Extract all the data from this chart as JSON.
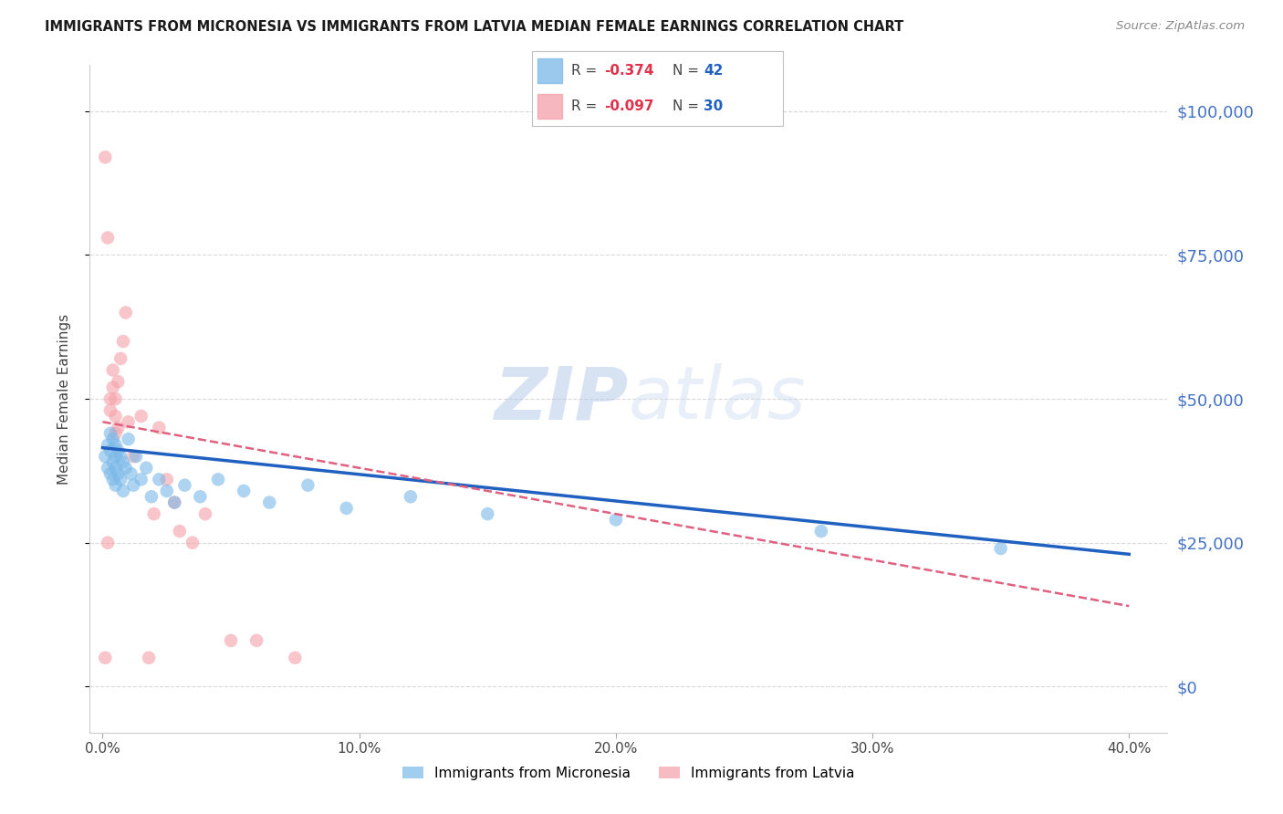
{
  "title": "IMMIGRANTS FROM MICRONESIA VS IMMIGRANTS FROM LATVIA MEDIAN FEMALE EARNINGS CORRELATION CHART",
  "source": "Source: ZipAtlas.com",
  "ylabel": "Median Female Earnings",
  "y_tick_labels": [
    "$0",
    "$25,000",
    "$50,000",
    "$75,000",
    "$100,000"
  ],
  "y_tick_values": [
    0,
    25000,
    50000,
    75000,
    100000
  ],
  "x_tick_labels": [
    "0.0%",
    "10.0%",
    "20.0%",
    "30.0%",
    "40.0%"
  ],
  "x_tick_values": [
    0.0,
    0.1,
    0.2,
    0.3,
    0.4
  ],
  "xlim": [
    -0.005,
    0.415
  ],
  "ylim": [
    -8000,
    108000
  ],
  "micronesia_color": "#7ab8e8",
  "latvia_color": "#f4a0a8",
  "micronesia_label": "Immigrants from Micronesia",
  "latvia_label": "Immigrants from Latvia",
  "watermark_zip": "ZIP",
  "watermark_atlas": "atlas",
  "background_color": "#ffffff",
  "grid_color": "#d0d0d0",
  "micronesia_x": [
    0.001,
    0.002,
    0.002,
    0.003,
    0.003,
    0.003,
    0.004,
    0.004,
    0.004,
    0.005,
    0.005,
    0.005,
    0.005,
    0.006,
    0.006,
    0.007,
    0.007,
    0.008,
    0.008,
    0.009,
    0.01,
    0.011,
    0.012,
    0.013,
    0.015,
    0.017,
    0.019,
    0.022,
    0.025,
    0.028,
    0.032,
    0.038,
    0.045,
    0.055,
    0.065,
    0.08,
    0.095,
    0.12,
    0.15,
    0.2,
    0.28,
    0.35
  ],
  "micronesia_y": [
    40000,
    42000,
    38000,
    44000,
    41000,
    37000,
    43000,
    39000,
    36000,
    42000,
    40000,
    38000,
    35000,
    41000,
    37000,
    40000,
    36000,
    39000,
    34000,
    38000,
    43000,
    37000,
    35000,
    40000,
    36000,
    38000,
    33000,
    36000,
    34000,
    32000,
    35000,
    33000,
    36000,
    34000,
    32000,
    35000,
    31000,
    33000,
    30000,
    29000,
    27000,
    24000
  ],
  "latvia_x": [
    0.001,
    0.001,
    0.002,
    0.002,
    0.003,
    0.003,
    0.004,
    0.004,
    0.005,
    0.005,
    0.005,
    0.006,
    0.006,
    0.007,
    0.008,
    0.009,
    0.01,
    0.012,
    0.015,
    0.018,
    0.02,
    0.022,
    0.025,
    0.028,
    0.03,
    0.035,
    0.04,
    0.05,
    0.06,
    0.075
  ],
  "latvia_y": [
    92000,
    5000,
    25000,
    78000,
    50000,
    48000,
    55000,
    52000,
    50000,
    47000,
    44000,
    53000,
    45000,
    57000,
    60000,
    65000,
    46000,
    40000,
    47000,
    5000,
    30000,
    45000,
    36000,
    32000,
    27000,
    25000,
    30000,
    8000,
    8000,
    5000
  ],
  "mic_trend_x0": 0.0,
  "mic_trend_y0": 41500,
  "mic_trend_x1": 0.4,
  "mic_trend_y1": 23000,
  "lat_trend_x0": 0.0,
  "lat_trend_y0": 46000,
  "lat_trend_x1": 0.4,
  "lat_trend_y1": 14000
}
